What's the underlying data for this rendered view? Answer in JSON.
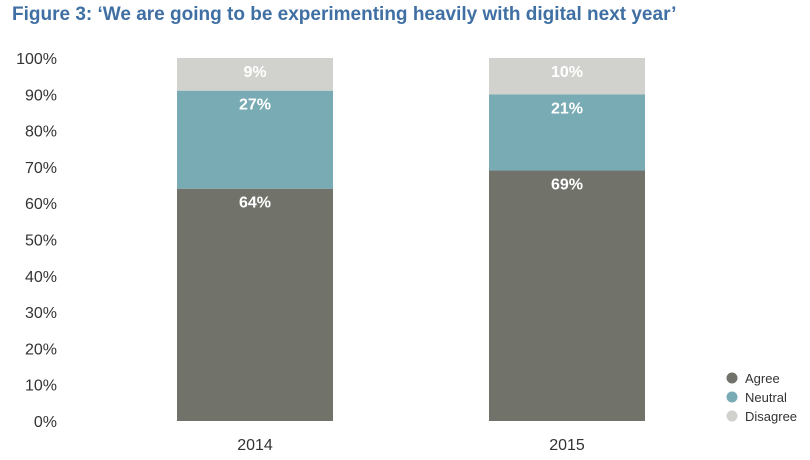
{
  "colors": {
    "title": "#3f6fa3",
    "agree": "#71736b",
    "neutral": "#78abb4",
    "disagree": "#d1d1cd"
  },
  "chart_data": {
    "type": "bar",
    "stacked": true,
    "title": "Figure 3: ‘We are going to be experimenting heavily with digital next year’",
    "xlabel": "",
    "ylabel": "",
    "categories": [
      "2014",
      "2015"
    ],
    "series": [
      {
        "name": "Agree",
        "values": [
          64,
          69
        ],
        "labels": [
          "64%",
          "69%"
        ]
      },
      {
        "name": "Neutral",
        "values": [
          27,
          21
        ],
        "labels": [
          "27%",
          "21%"
        ]
      },
      {
        "name": "Disagree",
        "values": [
          9,
          10
        ],
        "labels": [
          "9%",
          "10%"
        ]
      }
    ],
    "ylim": [
      0,
      100
    ],
    "yticks": [
      "0%",
      "10%",
      "20%",
      "30%",
      "40%",
      "50%",
      "60%",
      "70%",
      "80%",
      "90%",
      "100%"
    ],
    "grid": false,
    "legend_position": "bottom-right"
  }
}
